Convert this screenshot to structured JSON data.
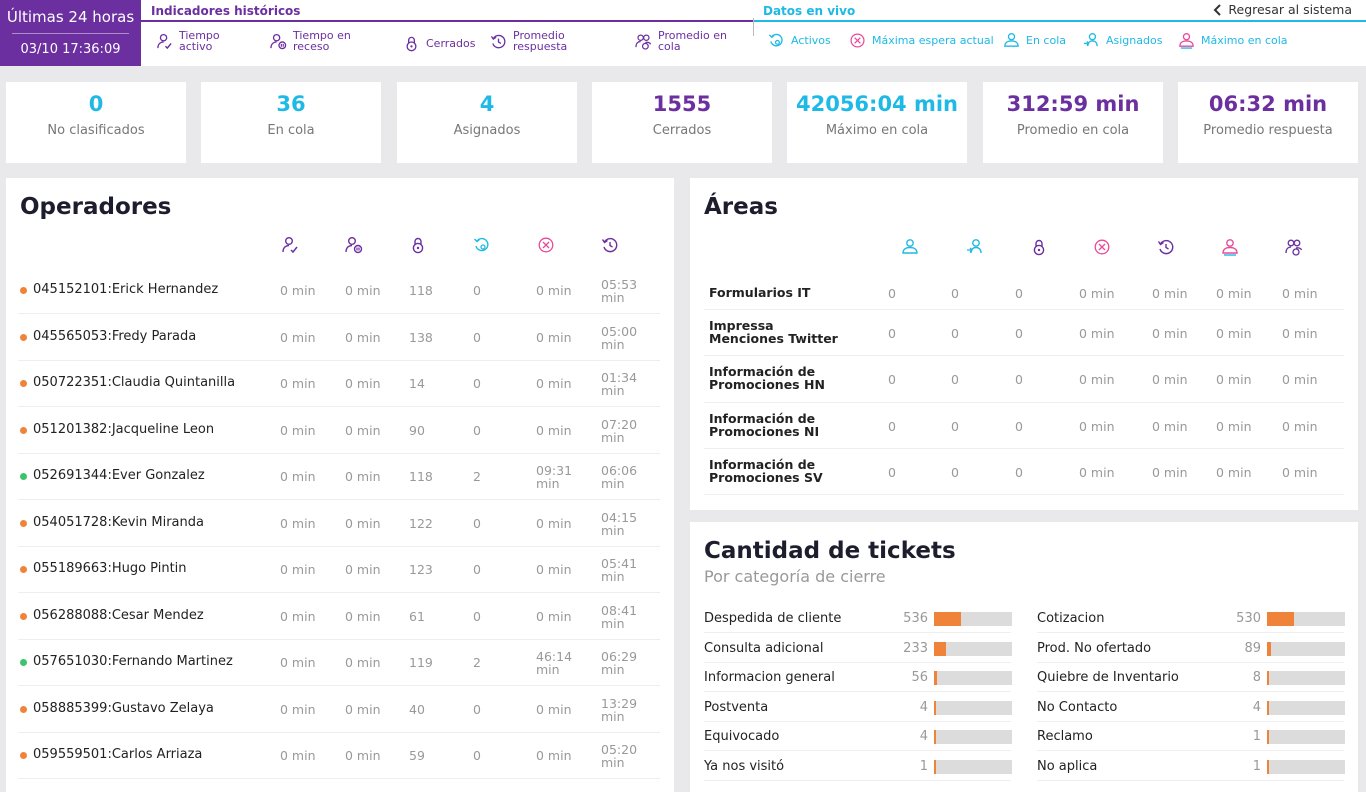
{
  "period": {
    "label": "Últimas 24 horas",
    "datetime": "03/10 17:36:09",
    "color": "#6b2fa0"
  },
  "colors": {
    "purple": "#6b2fa0",
    "cyan": "#1fb9e5",
    "pink": "#e84a9a",
    "orange": "#f0833a",
    "green": "#3cc46a"
  },
  "nav": {
    "historic_title": "Indicadores históricos",
    "live_title": "Datos en vivo",
    "back_label": "Regresar al sistema",
    "historic_tabs": [
      {
        "label_lines": [
          "Tiempo",
          "activo"
        ],
        "icon": "user-check-icon"
      },
      {
        "label_lines": [
          "Tiempo en",
          "receso"
        ],
        "icon": "user-pause-icon"
      },
      {
        "label_lines": [
          "Cerrados"
        ],
        "icon": "lock-icon"
      },
      {
        "label_lines": [
          "Promedio",
          "respuesta"
        ],
        "icon": "clock-reply-icon"
      },
      {
        "label_lines": [
          "Promedio en",
          "cola"
        ],
        "icon": "users-queue-icon"
      }
    ],
    "live_tabs": [
      {
        "label": "Activos",
        "icon": "active-clock-icon"
      },
      {
        "label": "Máxima espera actual",
        "icon": "max-wait-icon"
      },
      {
        "label": "En cola",
        "icon": "user-queue-icon"
      },
      {
        "label": "Asignados",
        "icon": "user-assign-icon"
      },
      {
        "label": "Máximo en cola",
        "icon": "max-queue-icon"
      }
    ]
  },
  "kpis": [
    {
      "value": "0",
      "label": "No clasificados",
      "tone": "cyan"
    },
    {
      "value": "36",
      "label": "En cola",
      "tone": "cyan"
    },
    {
      "value": "4",
      "label": "Asignados",
      "tone": "cyan"
    },
    {
      "value": "1555",
      "label": "Cerrados",
      "tone": "purple"
    },
    {
      "value": "42056:04 min",
      "label": "Máximo en cola",
      "tone": "cyan"
    },
    {
      "value": "312:59 min",
      "label": "Promedio en cola",
      "tone": "purple"
    },
    {
      "value": "06:32 min",
      "label": "Promedio respuesta",
      "tone": "purple"
    }
  ],
  "operators": {
    "title": "Operadores",
    "rows": [
      {
        "name": "045152101:Erick Hernandez",
        "status": "orange",
        "active": "0 min",
        "break": "0 min",
        "closed": "118",
        "assigned": "0",
        "wait": "0 min",
        "response": "05:53 min"
      },
      {
        "name": "045565053:Fredy Parada",
        "status": "orange",
        "active": "0 min",
        "break": "0 min",
        "closed": "138",
        "assigned": "0",
        "wait": "0 min",
        "response": "05:00 min"
      },
      {
        "name": "050722351:Claudia Quintanilla",
        "status": "orange",
        "active": "0 min",
        "break": "0 min",
        "closed": "14",
        "assigned": "0",
        "wait": "0 min",
        "response": "01:34 min"
      },
      {
        "name": "051201382:Jacqueline Leon",
        "status": "orange",
        "active": "0 min",
        "break": "0 min",
        "closed": "90",
        "assigned": "0",
        "wait": "0 min",
        "response": "07:20 min"
      },
      {
        "name": "052691344:Ever Gonzalez",
        "status": "green",
        "active": "0 min",
        "break": "0 min",
        "closed": "118",
        "assigned": "2",
        "wait": "09:31 min",
        "response": "06:06 min"
      },
      {
        "name": "054051728:Kevin Miranda",
        "status": "orange",
        "active": "0 min",
        "break": "0 min",
        "closed": "122",
        "assigned": "0",
        "wait": "0 min",
        "response": "04:15 min"
      },
      {
        "name": "055189663:Hugo Pintin",
        "status": "orange",
        "active": "0 min",
        "break": "0 min",
        "closed": "123",
        "assigned": "0",
        "wait": "0 min",
        "response": "05:41 min"
      },
      {
        "name": "056288088:Cesar Mendez",
        "status": "orange",
        "active": "0 min",
        "break": "0 min",
        "closed": "61",
        "assigned": "0",
        "wait": "0 min",
        "response": "08:41 min"
      },
      {
        "name": "057651030:Fernando Martinez",
        "status": "green",
        "active": "0 min",
        "break": "0 min",
        "closed": "119",
        "assigned": "2",
        "wait": "46:14 min",
        "response": "06:29 min"
      },
      {
        "name": "058885399:Gustavo Zelaya",
        "status": "orange",
        "active": "0 min",
        "break": "0 min",
        "closed": "40",
        "assigned": "0",
        "wait": "0 min",
        "response": "13:29 min"
      },
      {
        "name": "059559501:Carlos Arriaza",
        "status": "orange",
        "active": "0 min",
        "break": "0 min",
        "closed": "59",
        "assigned": "0",
        "wait": "0 min",
        "response": "05:20 min"
      }
    ]
  },
  "areas": {
    "title": "Áreas",
    "rows": [
      {
        "name": "Formularios IT",
        "c1": "0",
        "c2": "0",
        "c3": "0",
        "c4": "0 min",
        "c5": "0 min",
        "c6": "0 min",
        "c7": "0 min"
      },
      {
        "name": "Impressa Menciones Twitter",
        "c1": "0",
        "c2": "0",
        "c3": "0",
        "c4": "0 min",
        "c5": "0 min",
        "c6": "0 min",
        "c7": "0 min"
      },
      {
        "name": "Información de Promociones HN",
        "c1": "0",
        "c2": "0",
        "c3": "0",
        "c4": "0 min",
        "c5": "0 min",
        "c6": "0 min",
        "c7": "0 min"
      },
      {
        "name": "Información de Promociones NI",
        "c1": "0",
        "c2": "0",
        "c3": "0",
        "c4": "0 min",
        "c5": "0 min",
        "c6": "0 min",
        "c7": "0 min"
      },
      {
        "name": "Información de Promociones SV",
        "c1": "0",
        "c2": "0",
        "c3": "0",
        "c4": "0 min",
        "c5": "0 min",
        "c6": "0 min",
        "c7": "0 min"
      }
    ]
  },
  "tickets": {
    "title": "Cantidad de tickets",
    "subtitle": "Por categoría de cierre",
    "scale_max": 1555,
    "left": [
      {
        "label": "Despedida de cliente",
        "value": 536
      },
      {
        "label": "Consulta adicional",
        "value": 233
      },
      {
        "label": "Informacion general",
        "value": 56
      },
      {
        "label": "Postventa",
        "value": 4
      },
      {
        "label": "Equivocado",
        "value": 4
      },
      {
        "label": "Ya nos visitó",
        "value": 1
      }
    ],
    "right": [
      {
        "label": "Cotizacion",
        "value": 530
      },
      {
        "label": "Prod. No ofertado",
        "value": 89
      },
      {
        "label": "Quiebre de Inventario",
        "value": 8
      },
      {
        "label": "No Contacto",
        "value": 4
      },
      {
        "label": "Reclamo",
        "value": 1
      },
      {
        "label": "No aplica",
        "value": 1
      }
    ]
  }
}
